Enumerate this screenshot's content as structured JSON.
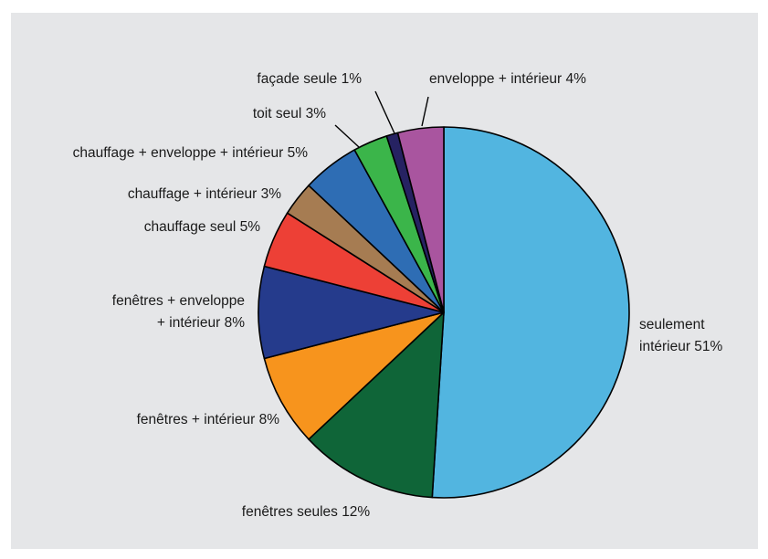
{
  "chart_data": {
    "type": "pie",
    "title": "",
    "slices": [
      {
        "label_lines": [
          "seulement",
          "intérieur 51%"
        ],
        "value": 51,
        "color": "#52b5e0"
      },
      {
        "label_lines": [
          "fenêtres seules 12%"
        ],
        "value": 12,
        "color": "#0f6538"
      },
      {
        "label_lines": [
          "fenêtres + intérieur 8%"
        ],
        "value": 8,
        "color": "#f7941d"
      },
      {
        "label_lines": [
          "fenêtres + enveloppe",
          "+ intérieur 8%"
        ],
        "value": 8,
        "color": "#253b8c"
      },
      {
        "label_lines": [
          "chauffage seul 5%"
        ],
        "value": 5,
        "color": "#ed4036"
      },
      {
        "label_lines": [
          "chauffage + intérieur 3%"
        ],
        "value": 3,
        "color": "#a67c52"
      },
      {
        "label_lines": [
          "chauffage + enveloppe + intérieur 5%"
        ],
        "value": 5,
        "color": "#2e6db4"
      },
      {
        "label_lines": [
          "toit seul 3%"
        ],
        "value": 3,
        "color": "#3bb54a"
      },
      {
        "label_lines": [
          "façade seule 1%"
        ],
        "value": 1,
        "color": "#262262"
      },
      {
        "label_lines": [
          "enveloppe  + intérieur 4%"
        ],
        "value": 4,
        "color": "#a9559f"
      }
    ]
  }
}
